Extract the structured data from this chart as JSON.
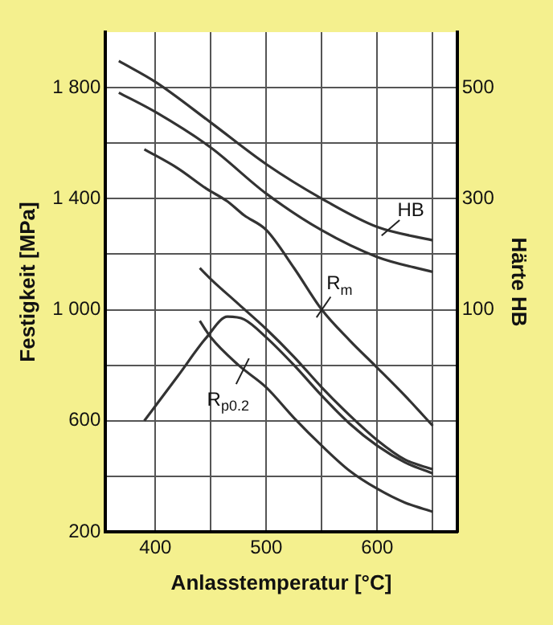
{
  "chart_data": {
    "type": "line",
    "xlabel": "Anlasstemperatur [°C]",
    "ylabel": "Festigkeit [MPa]",
    "y2label": "Härte HB",
    "xlim": [
      355,
      672
    ],
    "xticks": [
      400,
      {
        "value": 450,
        "label": null
      },
      500,
      {
        "value": 550,
        "label": null
      },
      600,
      {
        "value": 650,
        "label": null
      }
    ],
    "ylim": [
      200,
      2000
    ],
    "yticks": [
      200,
      {
        "value": 400,
        "label": null
      },
      600,
      {
        "value": 800,
        "label": null
      },
      {
        "value": 1000,
        "label": "1 000"
      },
      {
        "value": 1200,
        "label": null
      },
      {
        "value": 1400,
        "label": "1 400"
      },
      {
        "value": 1600,
        "label": null
      },
      {
        "value": 1800,
        "label": "1 800"
      }
    ],
    "y2lim": [
      -300,
      600
    ],
    "y2ticks": [
      100,
      300,
      500
    ],
    "grid": true,
    "legend": false,
    "marker": "none",
    "line_style": "solid",
    "series": [
      {
        "color": "#333333",
        "axis": "y2",
        "x": [
          367,
          401,
          450,
          500,
          550,
          600,
          650
        ],
        "values": [
          548,
          509,
          437,
          362,
          300,
          249,
          225
        ]
      },
      {
        "color": "#333333",
        "axis": "y2",
        "x": [
          367,
          401,
          450,
          500,
          550,
          600,
          650
        ],
        "values": [
          491,
          455,
          392,
          309,
          243,
          195,
          168
        ]
      },
      {
        "color": "#333333",
        "x": [
          390,
          420,
          446,
          465,
          480,
          500,
          525,
          550,
          575,
          600,
          625,
          650
        ],
        "values": [
          1578,
          1510,
          1436,
          1390,
          1340,
          1287,
          1150,
          1000,
          890,
          791,
          690,
          582
        ]
      },
      {
        "color": "#333333",
        "x": [
          390,
          420,
          446,
          465,
          480,
          500,
          525,
          550,
          575,
          600,
          625,
          650
        ],
        "values": [
          600,
          760,
          900,
          975,
          965,
          900,
          800,
          690,
          590,
          510,
          450,
          410
        ]
      },
      {
        "color": "#333333",
        "x": [
          440,
          450,
          475,
          500,
          525,
          550,
          575,
          600,
          625,
          650
        ],
        "values": [
          1150,
          1110,
          1020,
          930,
          830,
          720,
          620,
          530,
          460,
          425
        ]
      },
      {
        "color": "#333333",
        "x": [
          440,
          450,
          475,
          500,
          525,
          550,
          575,
          600,
          625,
          650
        ],
        "values": [
          960,
          900,
          800,
          720,
          610,
          510,
          420,
          355,
          305,
          272
        ]
      }
    ],
    "annotations": [
      {
        "text": "HB",
        "x": 610,
        "y": 1288
      },
      {
        "text": "R$_{m}$",
        "x": 550,
        "y": 1000
      },
      {
        "text": "R$_{p0.2}$",
        "x": 480,
        "y": 790
      }
    ]
  }
}
